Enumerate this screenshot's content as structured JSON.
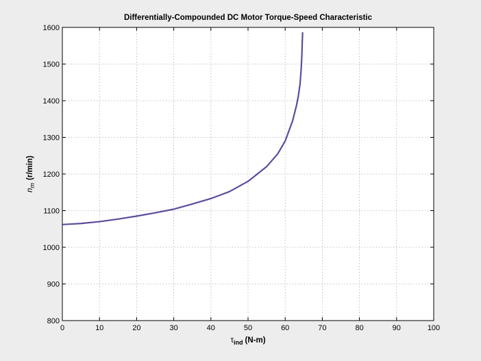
{
  "chart_data": {
    "type": "line",
    "title": "Differentially-Compounded DC Motor Torque-Speed Characteristic",
    "xlabel_symbol": "τ",
    "xlabel_sub": "ind",
    "xlabel_unit": "(N-m)",
    "ylabel_symbol": "n",
    "ylabel_sub": "m",
    "ylabel_unit": "(r/min)",
    "xlim": [
      0,
      100
    ],
    "ylim": [
      800,
      1600
    ],
    "xticks": [
      "0",
      "10",
      "20",
      "30",
      "40",
      "50",
      "60",
      "70",
      "80",
      "90",
      "100"
    ],
    "yticks": [
      "800",
      "900",
      "1000",
      "1100",
      "1200",
      "1300",
      "1400",
      "1500",
      "1600"
    ],
    "grid": true,
    "line_color": "#5e4a9c",
    "series": [
      {
        "x": [
          0,
          5,
          10,
          15,
          20,
          25,
          30,
          35,
          40,
          45,
          50,
          55,
          58,
          60,
          62,
          63,
          63.5,
          64,
          64.3,
          64.5,
          64.6,
          64.7
        ],
        "y": [
          1062,
          1065,
          1070,
          1077,
          1085,
          1094,
          1104,
          1118,
          1133,
          1152,
          1180,
          1220,
          1255,
          1290,
          1345,
          1385,
          1410,
          1445,
          1485,
          1525,
          1560,
          1585
        ]
      }
    ]
  }
}
